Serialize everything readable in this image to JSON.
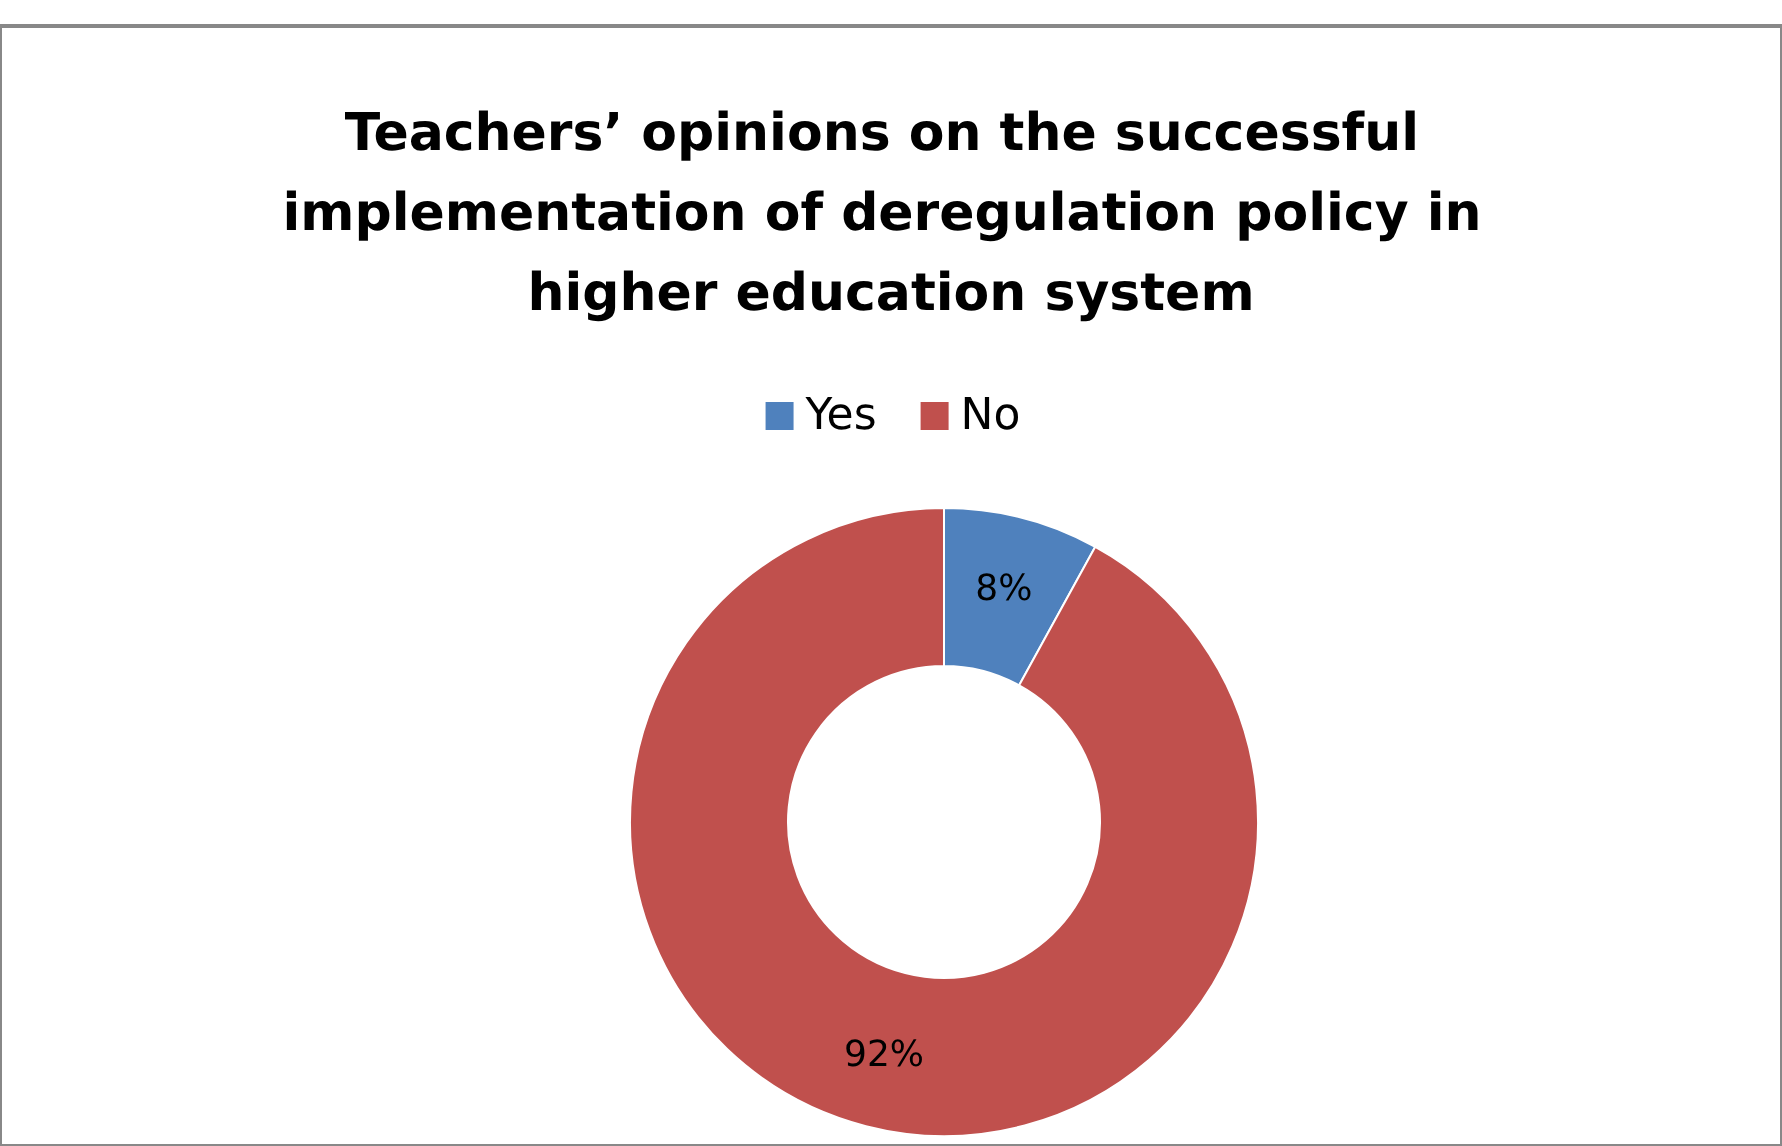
{
  "chart_data": {
    "type": "donut",
    "title": "Teachers’ opinions on the successful implementation of deregulation policy in higher education system",
    "categories": [
      "Yes",
      "No"
    ],
    "values": [
      8,
      92
    ],
    "colors": [
      "#4f81bd",
      "#c0504d"
    ],
    "value_labels": [
      "8%",
      "92%"
    ],
    "legend": "top"
  }
}
